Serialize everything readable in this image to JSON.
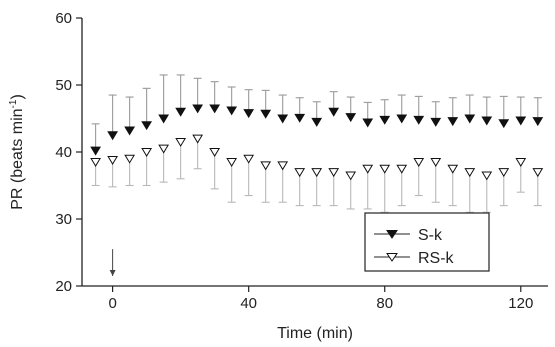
{
  "chart_data": {
    "type": "line",
    "xlabel": "Time (min)",
    "ylabel": "PR (beats min",
    "ylabel_superscript": "-1",
    "ylabel_close": ")",
    "xlim": [
      -9,
      128
    ],
    "ylim": [
      20,
      60
    ],
    "xticks": [
      0,
      40,
      80,
      120
    ],
    "yticks": [
      20,
      30,
      40,
      50,
      60
    ],
    "grid": false,
    "legend_position": "lower-right",
    "series": [
      {
        "name": "S-k",
        "marker": "filled-triangle-down",
        "color": "#111111",
        "x": [
          -5,
          0,
          5,
          10,
          15,
          20,
          25,
          30,
          35,
          40,
          45,
          50,
          55,
          60,
          65,
          70,
          75,
          80,
          85,
          90,
          95,
          100,
          105,
          110,
          115,
          120,
          125
        ],
        "y": [
          40.2,
          42.5,
          43.2,
          44.0,
          45.0,
          46.0,
          46.5,
          46.5,
          46.2,
          45.8,
          45.7,
          45.0,
          45.1,
          44.5,
          46.0,
          45.2,
          44.4,
          44.8,
          45.0,
          44.8,
          44.5,
          44.6,
          45.0,
          44.7,
          44.3,
          44.7,
          44.6
        ],
        "err": [
          4.0,
          6.0,
          5.0,
          5.5,
          6.5,
          5.5,
          4.5,
          4.0,
          3.5,
          3.5,
          3.5,
          3.5,
          3.0,
          3.0,
          3.0,
          3.0,
          3.0,
          3.0,
          3.5,
          3.5,
          3.0,
          3.5,
          3.5,
          3.5,
          4.0,
          3.5,
          3.5
        ]
      },
      {
        "name": "RS-k",
        "marker": "open-triangle-down",
        "color": "#111111",
        "x": [
          -5,
          0,
          5,
          10,
          15,
          20,
          25,
          30,
          35,
          40,
          45,
          50,
          55,
          60,
          65,
          70,
          75,
          80,
          85,
          90,
          95,
          100,
          105,
          110,
          115,
          120,
          125
        ],
        "y": [
          38.5,
          38.8,
          39.0,
          40.0,
          40.5,
          41.5,
          42.0,
          40.0,
          38.5,
          39.0,
          38.0,
          38.0,
          37.0,
          37.0,
          37.0,
          36.5,
          37.5,
          37.5,
          37.5,
          38.5,
          38.5,
          37.5,
          37.0,
          36.5,
          37.0,
          38.5,
          37.0
        ],
        "err": [
          3.5,
          4.0,
          4.0,
          5.0,
          5.0,
          5.5,
          4.5,
          5.5,
          6.0,
          5.5,
          5.5,
          5.5,
          5.0,
          5.0,
          5.0,
          5.0,
          6.0,
          6.5,
          5.5,
          5.0,
          6.0,
          5.5,
          6.0,
          5.5,
          5.0,
          4.5,
          5.0
        ]
      }
    ],
    "annotation": {
      "type": "arrow-down",
      "x": 0,
      "y_from": 25.5,
      "y_to": 21.5
    }
  }
}
